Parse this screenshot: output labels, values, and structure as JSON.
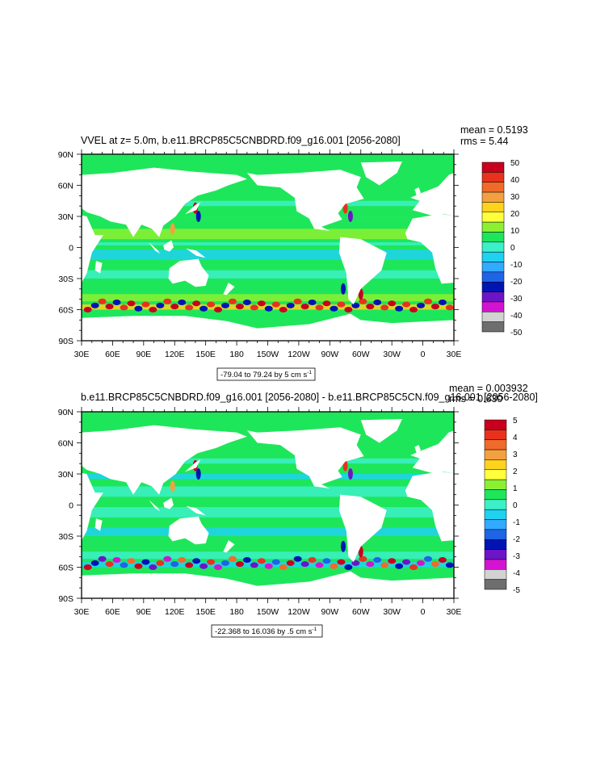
{
  "chart_data": [
    {
      "type": "heatmap",
      "title": "VVEL at z=   5.0m, b.e11.BRCP85C5CNBDRD.f09_g16.001 [2056-2080]",
      "stats": {
        "mean_text": "mean = 0.5193",
        "rms_text": "rms = 5.44"
      },
      "x_ticks": [
        "30E",
        "60E",
        "90E",
        "120E",
        "150E",
        "180",
        "150W",
        "120W",
        "90W",
        "60W",
        "30W",
        "0",
        "30E"
      ],
      "y_ticks": [
        "90N",
        "60N",
        "30N",
        "0",
        "30S",
        "60S",
        "90S"
      ],
      "xlim": [
        30,
        390
      ],
      "ylim": [
        -90,
        90
      ],
      "colorbar": {
        "levels": [
          "50",
          "40",
          "30",
          "20",
          "10",
          "0",
          "-10",
          "-20",
          "-30",
          "-40",
          "-50"
        ],
        "colors": [
          "#c8001e",
          "#e8321e",
          "#f06a2a",
          "#f5a040",
          "#ffd21e",
          "#ffff3c",
          "#8cf032",
          "#1ee65a",
          "#3cf0c8",
          "#1ed2f0",
          "#32aaff",
          "#1e64e6",
          "#0014b4",
          "#6e14c8",
          "#d214d2",
          "#d2d2d2",
          "#6e6e6e"
        ]
      },
      "info_label": "-79.04 to 79.24 by 5 cm s",
      "info_sup": "-1"
    },
    {
      "type": "heatmap",
      "title": "b.e11.BRCP85C5CNBDRD.f09_g16.001 [2056-2080] - b.e11.BRCP85C5CN.f09_g16.001 [2056-2080]",
      "stats": {
        "mean_text": "mean = 0.003932",
        "rms_text": "rms = 0.630"
      },
      "x_ticks": [
        "30E",
        "60E",
        "90E",
        "120E",
        "150E",
        "180",
        "150W",
        "120W",
        "90W",
        "60W",
        "30W",
        "0",
        "30E"
      ],
      "y_ticks": [
        "90N",
        "60N",
        "30N",
        "0",
        "30S",
        "60S",
        "90S"
      ],
      "xlim": [
        30,
        390
      ],
      "ylim": [
        -90,
        90
      ],
      "colorbar": {
        "levels": [
          "5",
          "4",
          "3",
          "2",
          "1",
          "0",
          "-1",
          "-2",
          "-3",
          "-4",
          "-5"
        ],
        "colors": [
          "#c8001e",
          "#e8321e",
          "#f06a2a",
          "#f5a040",
          "#ffd21e",
          "#ffff3c",
          "#8cf032",
          "#1ee65a",
          "#3cf0c8",
          "#1ed2f0",
          "#32aaff",
          "#1e64e6",
          "#0014b4",
          "#6e14c8",
          "#d214d2",
          "#d2d2d2",
          "#6e6e6e"
        ]
      },
      "info_label": "-22.368 to 16.036 by .5 cm s",
      "info_sup": "-1"
    }
  ]
}
